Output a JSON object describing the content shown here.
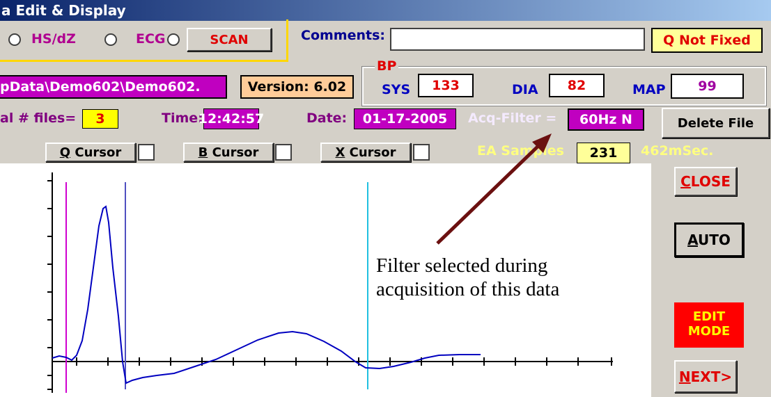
{
  "title_bar": {
    "title": "a Edit & Display"
  },
  "mode_row": {
    "options": [
      "HS/dZ",
      "ECG"
    ],
    "scan_button": "SCAN"
  },
  "comments": {
    "label": "Comments:"
  },
  "q_status": "Q Not Fixed",
  "bp": {
    "group_label": "BP",
    "sys_label": "SYS",
    "sys": "133",
    "dia_label": "DIA",
    "dia": "82",
    "map_label": "MAP",
    "map": "99"
  },
  "file_path": "pData\\Demo602\\Demo602.",
  "version": "Version: 6.02",
  "info_row": {
    "files_label": "al # files=",
    "files": "3",
    "time_label": "Time:",
    "time": "12:42:57",
    "date_label": "Date:",
    "date": "01-17-2005",
    "filter_label": "Acq-Filter =",
    "filter": "60Hz N"
  },
  "delete_button": "Delete File",
  "cursors": [
    "Q Cursor",
    "B Cursor",
    "X Cursor"
  ],
  "samples": {
    "label": "EA Samples",
    "count": "231",
    "duration": "462mSec."
  },
  "side_buttons": {
    "close": "CLOSE",
    "auto": "AUTO",
    "edit_mode": [
      "EDIT",
      "MODE"
    ],
    "next": "NEXT>"
  },
  "annotation": [
    "Filter selected during",
    "acquisition of this data"
  ]
}
